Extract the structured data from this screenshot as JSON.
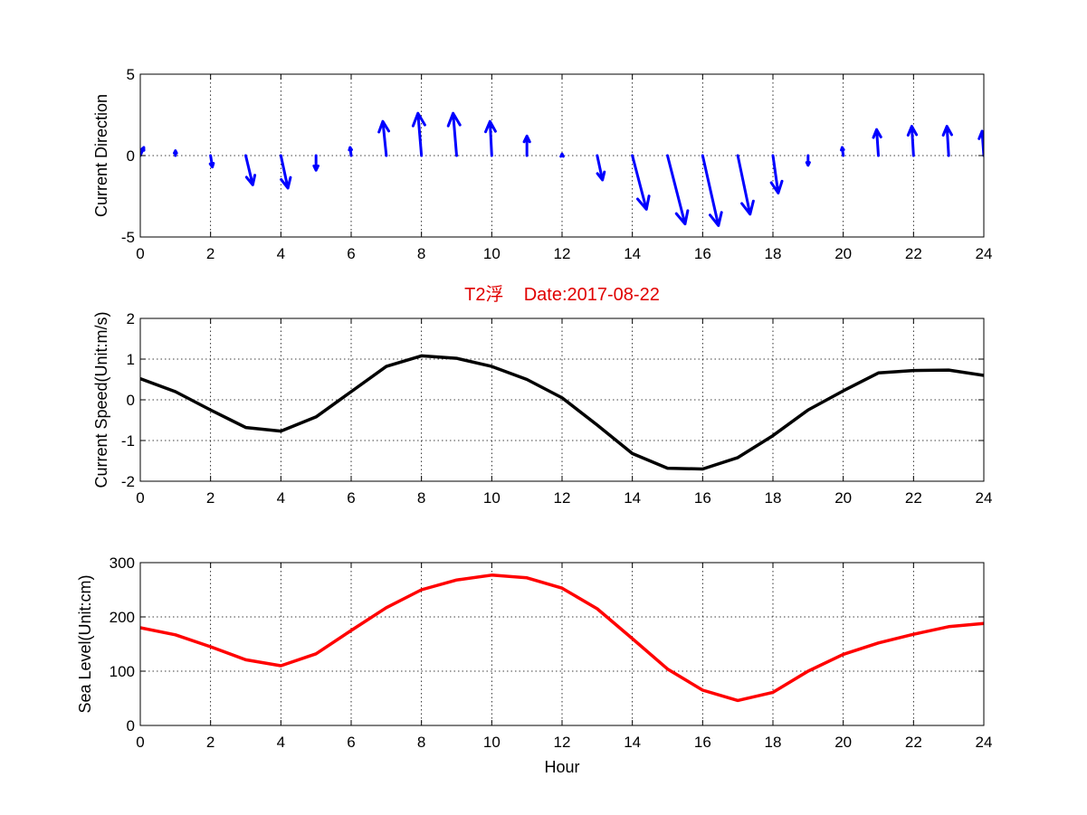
{
  "chart_data": [
    {
      "type": "quiver",
      "ylabel": "Current Direction",
      "xlabel": "",
      "xlim": [
        0,
        24
      ],
      "ylim": [
        -5,
        5
      ],
      "xticks": [
        0,
        2,
        4,
        6,
        8,
        10,
        12,
        14,
        16,
        18,
        20,
        22,
        24
      ],
      "yticks": [
        -5,
        0,
        5
      ],
      "grid": true,
      "color": "#0000ff",
      "vectors": [
        {
          "x": 0,
          "u": 0.1,
          "v": 0.5
        },
        {
          "x": 1,
          "u": 0.0,
          "v": 0.3
        },
        {
          "x": 2,
          "u": 0.05,
          "v": -0.7
        },
        {
          "x": 3,
          "u": 0.2,
          "v": -1.8
        },
        {
          "x": 4,
          "u": 0.2,
          "v": -2.0
        },
        {
          "x": 5,
          "u": 0.0,
          "v": -0.9
        },
        {
          "x": 6,
          "u": -0.03,
          "v": 0.5
        },
        {
          "x": 7,
          "u": -0.1,
          "v": 2.1
        },
        {
          "x": 8,
          "u": -0.1,
          "v": 2.6
        },
        {
          "x": 9,
          "u": -0.1,
          "v": 2.6
        },
        {
          "x": 10,
          "u": -0.05,
          "v": 2.1
        },
        {
          "x": 11,
          "u": 0.0,
          "v": 1.2
        },
        {
          "x": 12,
          "u": 0.0,
          "v": 0.1
        },
        {
          "x": 13,
          "u": 0.15,
          "v": -1.5
        },
        {
          "x": 14,
          "u": 0.4,
          "v": -3.3
        },
        {
          "x": 15,
          "u": 0.5,
          "v": -4.2
        },
        {
          "x": 16,
          "u": 0.45,
          "v": -4.3
        },
        {
          "x": 17,
          "u": 0.35,
          "v": -3.6
        },
        {
          "x": 18,
          "u": 0.15,
          "v": -2.3
        },
        {
          "x": 19,
          "u": 0.0,
          "v": -0.6
        },
        {
          "x": 20,
          "u": -0.03,
          "v": 0.5
        },
        {
          "x": 21,
          "u": -0.05,
          "v": 1.6
        },
        {
          "x": 22,
          "u": -0.05,
          "v": 1.8
        },
        {
          "x": 23,
          "u": -0.05,
          "v": 1.8
        },
        {
          "x": 24,
          "u": -0.05,
          "v": 1.5
        }
      ]
    },
    {
      "type": "line",
      "title": "T2浮    Date:2017-08-22",
      "ylabel": "Current Speed(Unit:m/s)",
      "xlabel": "",
      "xlim": [
        0,
        24
      ],
      "ylim": [
        -2,
        2
      ],
      "xticks": [
        0,
        2,
        4,
        6,
        8,
        10,
        12,
        14,
        16,
        18,
        20,
        22,
        24
      ],
      "yticks": [
        -2,
        -1,
        0,
        1,
        2
      ],
      "grid": true,
      "color": "#000000",
      "title_color": "#e00000",
      "x": [
        0,
        1,
        2,
        3,
        4,
        5,
        6,
        7,
        8,
        9,
        10,
        11,
        12,
        13,
        14,
        15,
        16,
        17,
        18,
        19,
        20,
        21,
        22,
        23,
        24
      ],
      "y": [
        0.52,
        0.2,
        -0.25,
        -0.68,
        -0.77,
        -0.42,
        0.2,
        0.82,
        1.08,
        1.02,
        0.82,
        0.5,
        0.05,
        -0.62,
        -1.32,
        -1.68,
        -1.7,
        -1.42,
        -0.88,
        -0.25,
        0.22,
        0.66,
        0.72,
        0.73,
        0.6
      ]
    },
    {
      "type": "line",
      "ylabel": "Sea Level(Unit:cm)",
      "xlabel": "Hour",
      "xlim": [
        0,
        24
      ],
      "ylim": [
        0,
        300
      ],
      "xticks": [
        0,
        2,
        4,
        6,
        8,
        10,
        12,
        14,
        16,
        18,
        20,
        22,
        24
      ],
      "yticks": [
        0,
        100,
        200,
        300
      ],
      "grid": true,
      "color": "#ff0000",
      "x": [
        0,
        1,
        2,
        3,
        4,
        5,
        6,
        7,
        8,
        9,
        10,
        11,
        12,
        13,
        14,
        15,
        16,
        17,
        18,
        19,
        20,
        21,
        22,
        23,
        24
      ],
      "y": [
        180,
        167,
        145,
        121,
        110,
        132,
        175,
        217,
        250,
        268,
        277,
        272,
        253,
        215,
        160,
        104,
        65,
        46,
        61,
        100,
        131,
        152,
        168,
        182,
        188
      ]
    }
  ]
}
